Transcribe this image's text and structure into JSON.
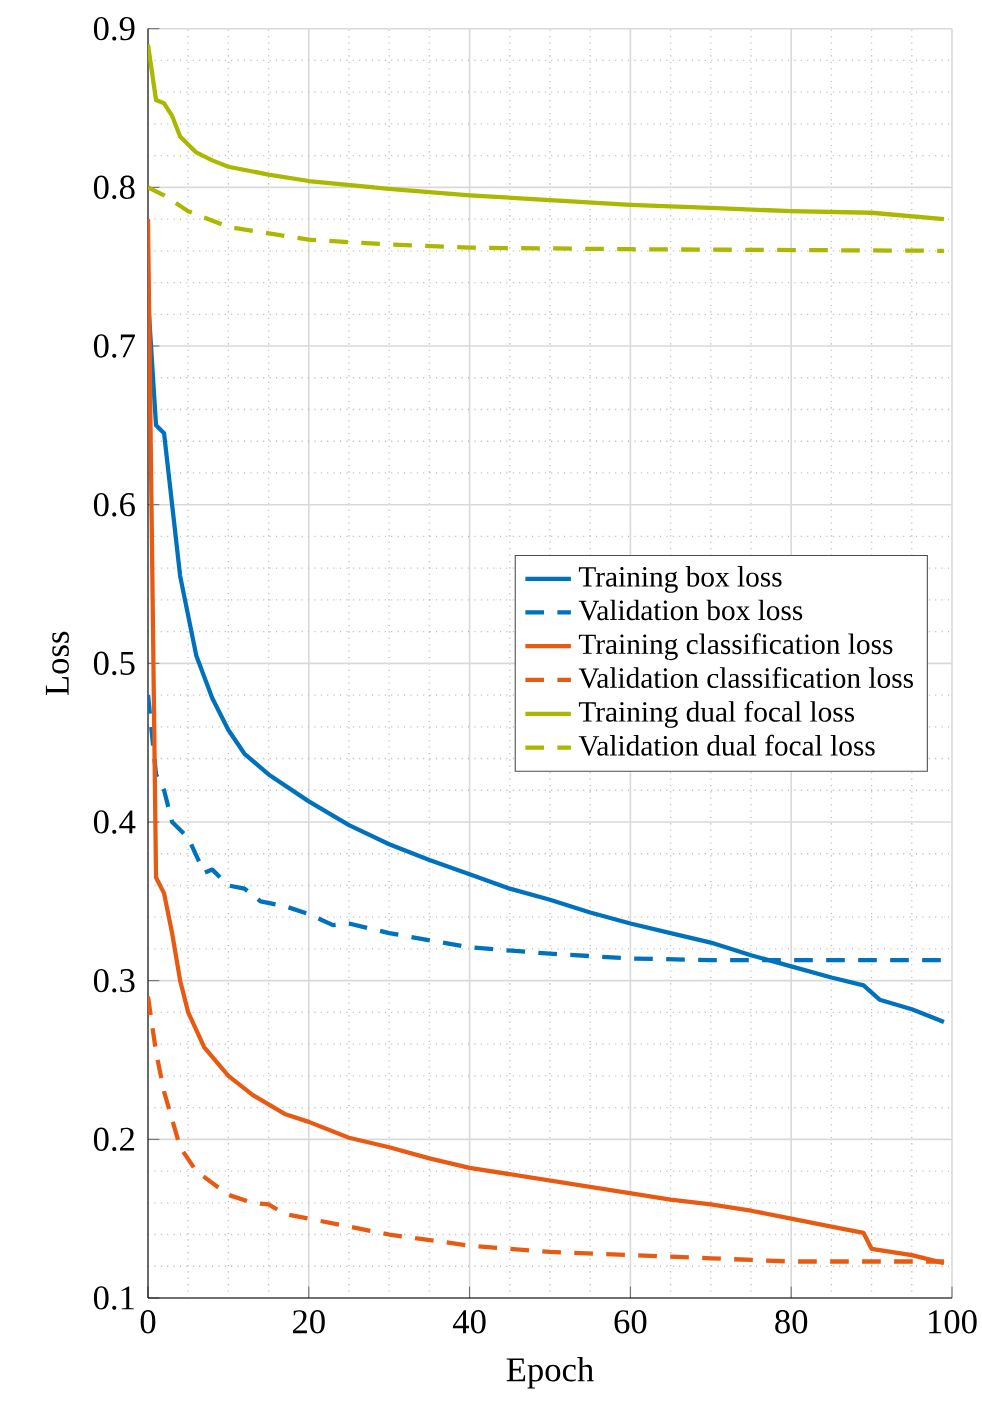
{
  "chart_data": {
    "type": "line",
    "xlabel": "Epoch",
    "ylabel": "Loss",
    "xlim": [
      0,
      100
    ],
    "ylim": [
      0.1,
      0.9
    ],
    "xticks": [
      0,
      20,
      40,
      60,
      80,
      100
    ],
    "yticks": [
      0.1,
      0.2,
      0.3,
      0.4,
      0.5,
      0.6,
      0.7,
      0.8,
      0.9
    ],
    "grid": true,
    "legend": "right",
    "marker": "none",
    "series": [
      {
        "name": "Training box loss",
        "color": "#0072bd",
        "line_style": "solid",
        "x": [
          0,
          1,
          2,
          3,
          4,
          5,
          6,
          8,
          10,
          12,
          15,
          20,
          25,
          30,
          35,
          40,
          45,
          50,
          55,
          60,
          65,
          70,
          75,
          80,
          85,
          89,
          91,
          95,
          99
        ],
        "values": [
          0.73,
          0.65,
          0.645,
          0.6,
          0.555,
          0.53,
          0.505,
          0.478,
          0.458,
          0.443,
          0.43,
          0.413,
          0.398,
          0.386,
          0.376,
          0.367,
          0.358,
          0.351,
          0.343,
          0.336,
          0.33,
          0.324,
          0.316,
          0.309,
          0.302,
          0.297,
          0.288,
          0.282,
          0.274
        ]
      },
      {
        "name": "Validation box loss",
        "color": "#0072bd",
        "line_style": "dashed",
        "x": [
          0,
          1,
          2,
          3,
          5,
          7,
          8,
          10,
          12,
          14,
          17,
          20,
          23,
          25,
          30,
          40,
          50,
          60,
          70,
          80,
          99
        ],
        "values": [
          0.48,
          0.43,
          0.42,
          0.4,
          0.39,
          0.368,
          0.37,
          0.36,
          0.358,
          0.35,
          0.347,
          0.342,
          0.335,
          0.336,
          0.33,
          0.321,
          0.317,
          0.314,
          0.313,
          0.313,
          0.313
        ]
      },
      {
        "name": "Training classification loss",
        "color": "#e85a12",
        "line_style": "solid",
        "x": [
          0,
          1,
          2,
          3,
          4,
          5,
          7,
          10,
          13,
          17,
          20,
          25,
          30,
          35,
          40,
          45,
          50,
          55,
          60,
          65,
          70,
          75,
          80,
          85,
          89,
          90,
          95,
          99
        ],
        "values": [
          0.78,
          0.365,
          0.355,
          0.33,
          0.3,
          0.28,
          0.258,
          0.24,
          0.228,
          0.216,
          0.211,
          0.201,
          0.195,
          0.188,
          0.182,
          0.178,
          0.174,
          0.17,
          0.166,
          0.162,
          0.159,
          0.155,
          0.15,
          0.145,
          0.141,
          0.131,
          0.127,
          0.122
        ]
      },
      {
        "name": "Validation classification loss",
        "color": "#e85a12",
        "line_style": "dashed",
        "x": [
          0,
          1,
          2,
          4,
          6,
          10,
          13,
          15,
          17,
          20,
          30,
          40,
          50,
          60,
          70,
          80,
          99
        ],
        "values": [
          0.29,
          0.255,
          0.23,
          0.195,
          0.18,
          0.165,
          0.16,
          0.159,
          0.153,
          0.15,
          0.14,
          0.133,
          0.129,
          0.127,
          0.125,
          0.123,
          0.123
        ]
      },
      {
        "name": "Training dual focal loss",
        "color": "#aab800",
        "line_style": "solid",
        "x": [
          0,
          1,
          2,
          3,
          4,
          6,
          8,
          10,
          15,
          20,
          30,
          40,
          50,
          60,
          70,
          80,
          90,
          99
        ],
        "values": [
          0.89,
          0.855,
          0.853,
          0.845,
          0.832,
          0.822,
          0.817,
          0.813,
          0.808,
          0.804,
          0.799,
          0.795,
          0.792,
          0.789,
          0.787,
          0.785,
          0.784,
          0.78
        ]
      },
      {
        "name": "Validation dual focal loss",
        "color": "#aab800",
        "line_style": "dashed",
        "x": [
          0,
          2,
          5,
          10,
          20,
          30,
          40,
          60,
          99
        ],
        "values": [
          0.8,
          0.795,
          0.785,
          0.775,
          0.767,
          0.764,
          0.762,
          0.761,
          0.76
        ]
      }
    ]
  }
}
